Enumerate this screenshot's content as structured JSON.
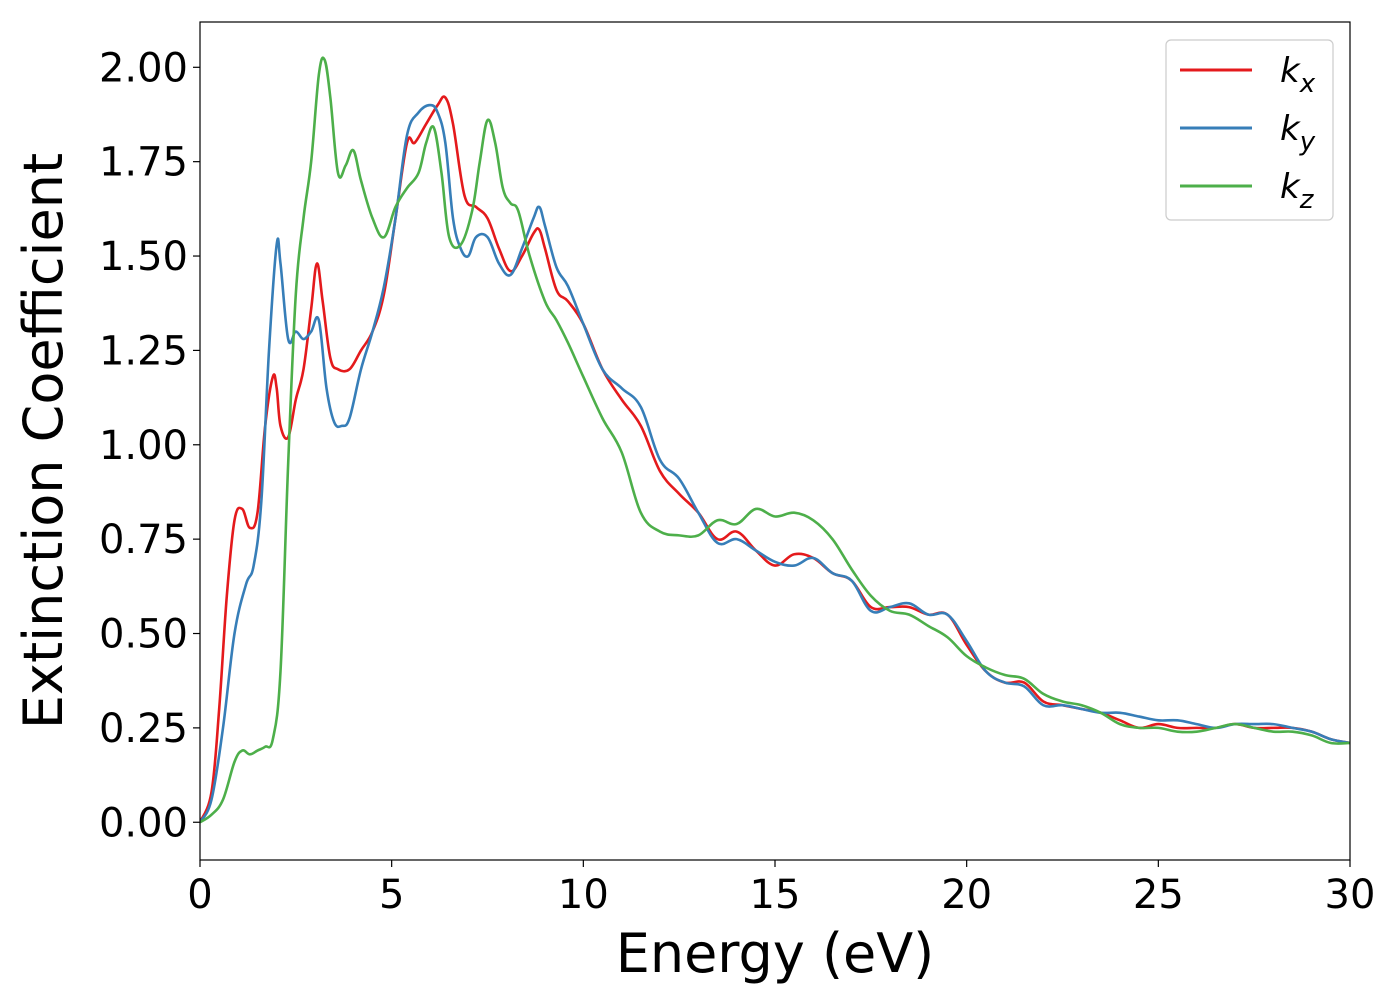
{
  "chart_data": {
    "type": "line",
    "xlabel": "Energy (eV)",
    "ylabel": "Extinction Coefficient",
    "xlim": [
      0,
      30
    ],
    "ylim": [
      -0.1,
      2.12
    ],
    "xticks": [
      "0",
      "5",
      "10",
      "15",
      "20",
      "25",
      "30"
    ],
    "yticks": [
      "0.00",
      "0.25",
      "0.50",
      "0.75",
      "1.00",
      "1.25",
      "1.50",
      "1.75",
      "2.00"
    ],
    "grid": false,
    "legend_position": "top-right",
    "series": [
      {
        "name": "k_x",
        "symbol": "k",
        "subscript": "x",
        "color": "#e41a1c",
        "x": [
          0,
          0.3,
          0.5,
          0.7,
          0.9,
          1.1,
          1.3,
          1.5,
          1.7,
          1.9,
          2.0,
          2.1,
          2.3,
          2.5,
          2.7,
          2.9,
          3.05,
          3.2,
          3.4,
          3.6,
          3.9,
          4.2,
          4.5,
          4.8,
          5.1,
          5.4,
          5.6,
          5.9,
          6.2,
          6.4,
          6.6,
          6.9,
          7.2,
          7.5,
          7.8,
          8.1,
          8.4,
          8.7,
          8.85,
          9.0,
          9.3,
          9.6,
          10.0,
          10.5,
          11.0,
          11.5,
          12.0,
          12.5,
          13.0,
          13.5,
          14.0,
          14.5,
          15.0,
          15.5,
          16.0,
          16.5,
          17.0,
          17.5,
          18.0,
          18.5,
          19.0,
          19.5,
          20.0,
          20.5,
          21.0,
          21.5,
          22.0,
          22.5,
          23.0,
          23.5,
          24.0,
          24.5,
          25.0,
          25.5,
          26.0,
          26.5,
          27.0,
          27.5,
          28.0,
          28.5,
          29.0,
          29.5,
          30.0
        ],
        "y": [
          0,
          0.08,
          0.3,
          0.6,
          0.8,
          0.83,
          0.78,
          0.82,
          1.05,
          1.18,
          1.15,
          1.05,
          1.02,
          1.12,
          1.2,
          1.36,
          1.48,
          1.38,
          1.23,
          1.2,
          1.2,
          1.25,
          1.3,
          1.4,
          1.6,
          1.8,
          1.8,
          1.85,
          1.9,
          1.92,
          1.85,
          1.66,
          1.63,
          1.6,
          1.52,
          1.46,
          1.5,
          1.56,
          1.57,
          1.52,
          1.41,
          1.38,
          1.32,
          1.2,
          1.12,
          1.05,
          0.93,
          0.87,
          0.82,
          0.75,
          0.77,
          0.72,
          0.68,
          0.71,
          0.7,
          0.66,
          0.64,
          0.57,
          0.57,
          0.57,
          0.55,
          0.55,
          0.47,
          0.4,
          0.37,
          0.37,
          0.32,
          0.31,
          0.3,
          0.29,
          0.27,
          0.25,
          0.26,
          0.25,
          0.25,
          0.25,
          0.26,
          0.25,
          0.25,
          0.25,
          0.24,
          0.22,
          0.21
        ]
      },
      {
        "name": "k_y",
        "symbol": "k",
        "subscript": "y",
        "color": "#377eb8",
        "x": [
          0,
          0.3,
          0.6,
          0.9,
          1.2,
          1.4,
          1.6,
          1.8,
          2.0,
          2.1,
          2.3,
          2.5,
          2.7,
          2.9,
          3.1,
          3.3,
          3.5,
          3.7,
          3.9,
          4.2,
          4.5,
          4.8,
          5.1,
          5.4,
          5.7,
          6.0,
          6.2,
          6.4,
          6.6,
          6.8,
          7.0,
          7.2,
          7.5,
          7.8,
          8.1,
          8.4,
          8.7,
          8.85,
          9.0,
          9.3,
          9.6,
          10.0,
          10.5,
          11.0,
          11.5,
          12.0,
          12.5,
          13.0,
          13.5,
          14.0,
          14.5,
          15.0,
          15.5,
          16.0,
          16.5,
          17.0,
          17.5,
          18.0,
          18.5,
          19.0,
          19.5,
          20.0,
          20.5,
          21.0,
          21.5,
          22.0,
          22.5,
          23.0,
          23.5,
          24.0,
          24.5,
          25.0,
          25.5,
          26.0,
          26.5,
          27.0,
          27.5,
          28.0,
          28.5,
          29.0,
          29.5,
          30.0
        ],
        "y": [
          0,
          0.06,
          0.25,
          0.5,
          0.63,
          0.68,
          0.85,
          1.25,
          1.53,
          1.48,
          1.28,
          1.3,
          1.28,
          1.3,
          1.33,
          1.15,
          1.06,
          1.05,
          1.07,
          1.2,
          1.3,
          1.42,
          1.6,
          1.82,
          1.88,
          1.9,
          1.88,
          1.8,
          1.6,
          1.52,
          1.5,
          1.55,
          1.55,
          1.48,
          1.45,
          1.52,
          1.6,
          1.63,
          1.58,
          1.47,
          1.42,
          1.32,
          1.2,
          1.15,
          1.1,
          0.96,
          0.91,
          0.82,
          0.74,
          0.75,
          0.72,
          0.69,
          0.68,
          0.7,
          0.66,
          0.64,
          0.56,
          0.57,
          0.58,
          0.55,
          0.55,
          0.48,
          0.4,
          0.37,
          0.36,
          0.31,
          0.31,
          0.3,
          0.29,
          0.29,
          0.28,
          0.27,
          0.27,
          0.26,
          0.25,
          0.26,
          0.26,
          0.26,
          0.25,
          0.24,
          0.22,
          0.21
        ]
      },
      {
        "name": "k_z",
        "symbol": "k",
        "subscript": "z",
        "color": "#4daf4a",
        "x": [
          0,
          0.3,
          0.6,
          0.9,
          1.1,
          1.3,
          1.5,
          1.7,
          1.9,
          2.1,
          2.3,
          2.5,
          2.7,
          2.9,
          3.1,
          3.25,
          3.4,
          3.6,
          3.8,
          4.0,
          4.2,
          4.5,
          4.8,
          5.1,
          5.4,
          5.7,
          5.9,
          6.1,
          6.3,
          6.5,
          6.8,
          7.1,
          7.3,
          7.5,
          7.7,
          7.9,
          8.1,
          8.3,
          8.6,
          9.0,
          9.3,
          9.6,
          10.0,
          10.5,
          11.0,
          11.5,
          12.0,
          12.5,
          13.0,
          13.5,
          14.0,
          14.5,
          15.0,
          15.5,
          16.0,
          16.5,
          17.0,
          17.5,
          18.0,
          18.5,
          19.0,
          19.5,
          20.0,
          20.5,
          21.0,
          21.5,
          22.0,
          22.5,
          23.0,
          23.5,
          24.0,
          24.5,
          25.0,
          25.5,
          26.0,
          26.5,
          27.0,
          27.5,
          28.0,
          28.5,
          29.0,
          29.5,
          30.0
        ],
        "y": [
          0,
          0.02,
          0.06,
          0.16,
          0.19,
          0.18,
          0.19,
          0.2,
          0.22,
          0.4,
          0.95,
          1.4,
          1.6,
          1.75,
          1.98,
          2.02,
          1.92,
          1.72,
          1.74,
          1.78,
          1.7,
          1.6,
          1.55,
          1.63,
          1.68,
          1.72,
          1.8,
          1.84,
          1.72,
          1.55,
          1.53,
          1.62,
          1.75,
          1.86,
          1.8,
          1.68,
          1.64,
          1.62,
          1.5,
          1.38,
          1.33,
          1.27,
          1.18,
          1.07,
          0.98,
          0.82,
          0.77,
          0.76,
          0.76,
          0.8,
          0.79,
          0.83,
          0.81,
          0.82,
          0.8,
          0.75,
          0.67,
          0.6,
          0.56,
          0.55,
          0.52,
          0.49,
          0.44,
          0.41,
          0.39,
          0.38,
          0.34,
          0.32,
          0.31,
          0.29,
          0.26,
          0.25,
          0.25,
          0.24,
          0.24,
          0.25,
          0.26,
          0.25,
          0.24,
          0.24,
          0.23,
          0.21,
          0.21
        ]
      }
    ]
  }
}
